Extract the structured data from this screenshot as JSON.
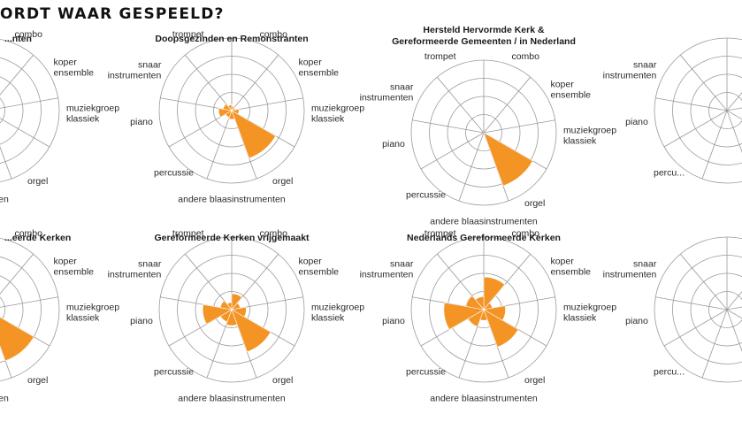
{
  "page": {
    "title": "ORDT WAAR GESPEELD?"
  },
  "chart_data": {
    "type": "polar-area",
    "categories": [
      "combo",
      "koper ensemble",
      "muziekgroep klassiek",
      "orgel",
      "andere blaasinstrumenten",
      "percussie",
      "piano",
      "snaar instrumenten",
      "trompet"
    ],
    "accent_color": "#f39424",
    "grid": true,
    "rmax": 1.0,
    "charts": [
      {
        "title": [
          "...nten"
        ],
        "visible_labels": [
          "combo",
          "koper ensemble",
          "muziekgroep klassiek",
          "orgel",
          "...umenten"
        ],
        "values": [
          0,
          0,
          0,
          0,
          0,
          0,
          0,
          0,
          0
        ]
      },
      {
        "title": [
          "Doopsgezinden en Remonstranten"
        ],
        "values": [
          0.06,
          0.05,
          0.1,
          0.7,
          0.12,
          0.1,
          0.18,
          0.12,
          0.08
        ]
      },
      {
        "title": [
          "Hersteld Hervormde Kerk &",
          "Gereformeerde Gemeenten / in Nederland"
        ],
        "values": [
          0.0,
          0.0,
          0.0,
          0.78,
          0.0,
          0.0,
          0.0,
          0.0,
          0.0
        ]
      },
      {
        "title": [],
        "visible_labels": [
          "snaar instrumenten",
          "piano",
          "percu..."
        ],
        "values": [
          0,
          0,
          0,
          0,
          0,
          0,
          0,
          0,
          0
        ]
      },
      {
        "title": [
          "...eerde Kerken"
        ],
        "visible_labels": [
          "combo",
          "koper ensemble",
          "muziekgroep klassiek",
          "orgel",
          "...umenten"
        ],
        "values": [
          0.0,
          0.0,
          0.0,
          0.75,
          0.0,
          0.0,
          0.0,
          0.0,
          0.0
        ]
      },
      {
        "title": [
          "Gereformeerde Kerken vrijgemaakt"
        ],
        "values": [
          0.22,
          0.12,
          0.2,
          0.62,
          0.22,
          0.18,
          0.4,
          0.16,
          0.1
        ]
      },
      {
        "title": [
          "Nederlands Gereformeerde Kerken"
        ],
        "values": [
          0.45,
          0.12,
          0.3,
          0.55,
          0.15,
          0.25,
          0.55,
          0.25,
          0.18
        ]
      },
      {
        "title": [],
        "visible_labels": [
          "snaar instrumenten",
          "piano",
          "percu..."
        ],
        "values": [
          0,
          0,
          0,
          0,
          0,
          0,
          0,
          0,
          0
        ]
      }
    ]
  }
}
